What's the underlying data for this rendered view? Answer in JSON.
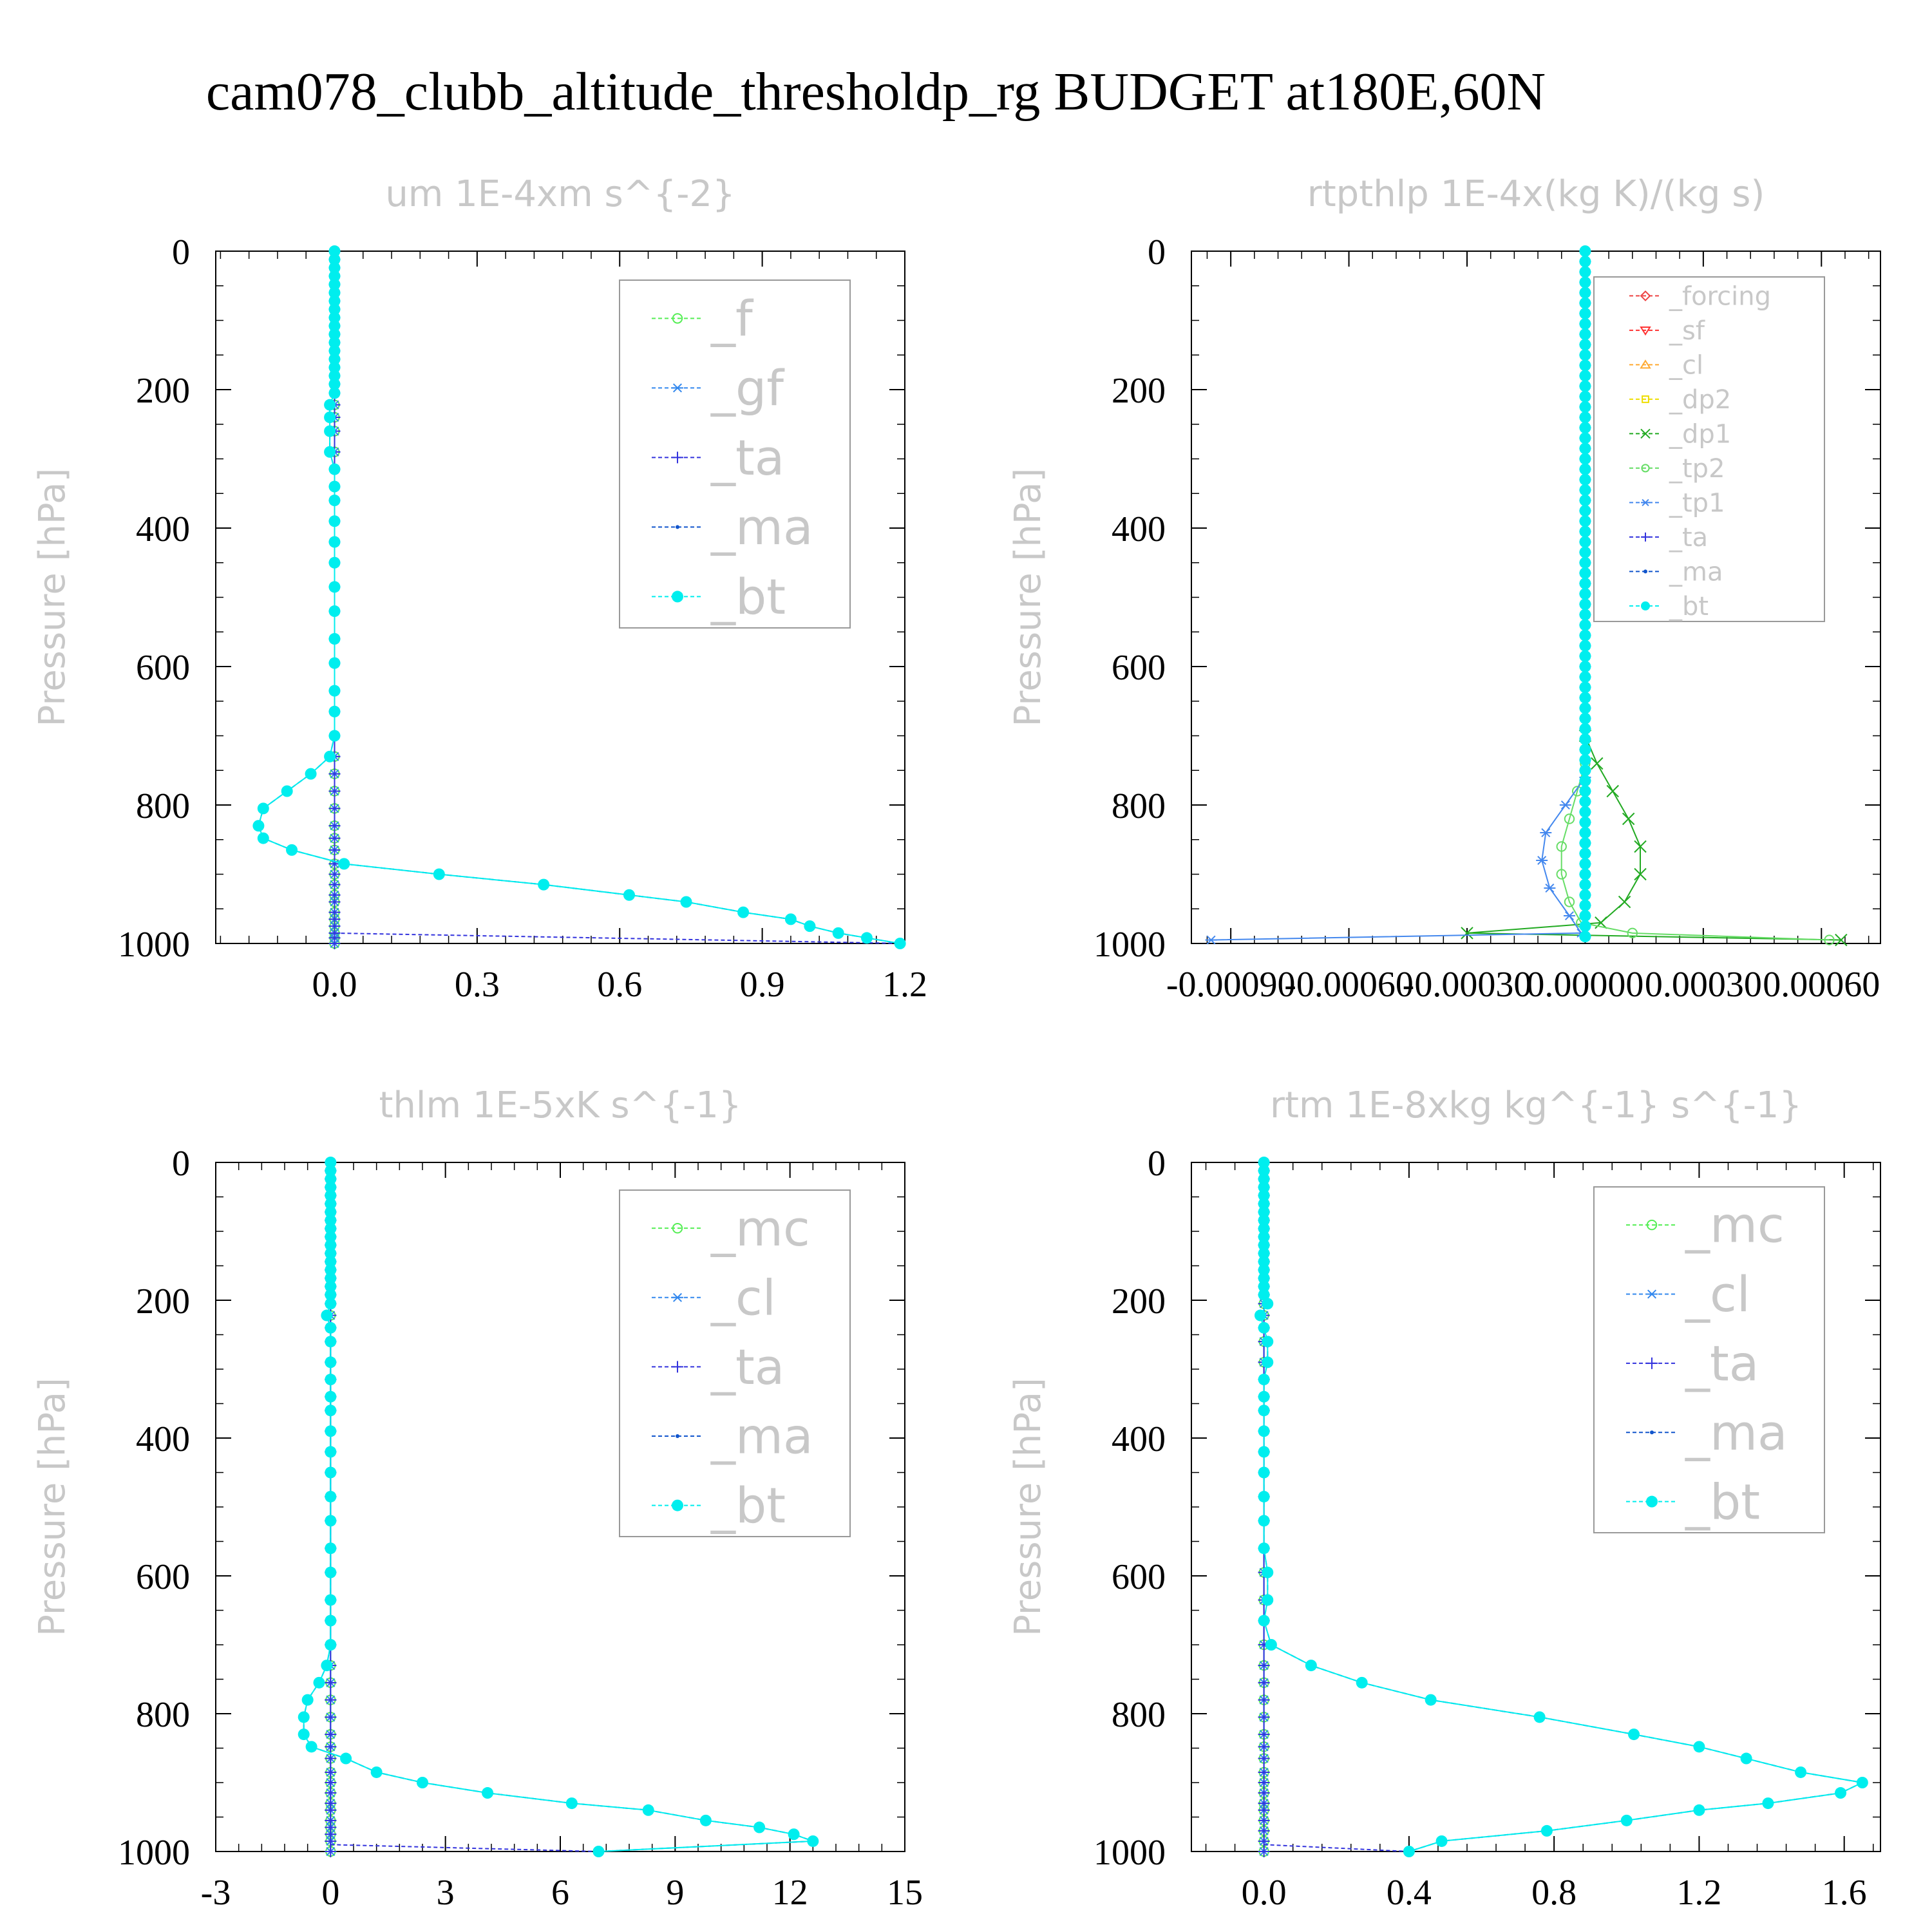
{
  "title": "cam078_clubb_altitude_thresholdp_rg  BUDGET at180E,60N",
  "colors": {
    "f": "#55ee55",
    "gf": "#3388ee",
    "ta": "#3333dd",
    "ma": "#1155cc",
    "bt": "#00eeee",
    "forcing": "#ee4444",
    "sf": "#ff3333",
    "cl_orange": "#ffaa33",
    "dp2": "#eedd00",
    "dp1": "#22aa22",
    "tp2": "#66dd66",
    "tp1": "#4488ee",
    "mc": "#55ee55",
    "cl": "#3388ee"
  },
  "chart_data": [
    {
      "type": "line",
      "title": "um  1E-4xm s^{-2}",
      "ylabel": "Pressure [hPa]",
      "ylim": [
        1000,
        0
      ],
      "xlim": [
        -0.25,
        1.2
      ],
      "xticks": [
        "0.0",
        "0.3",
        "0.6",
        "0.9",
        "1.2"
      ],
      "yticks": [
        "0",
        "200",
        "400",
        "600",
        "800",
        "1000"
      ],
      "legend": {
        "position": "top-right"
      },
      "pressure": [
        0,
        12,
        24,
        36,
        48,
        60,
        72,
        84,
        96,
        108,
        120,
        132,
        144,
        156,
        168,
        180,
        192,
        205,
        222,
        240,
        260,
        290,
        315,
        340,
        360,
        390,
        420,
        450,
        485,
        520,
        560,
        595,
        635,
        665,
        700,
        730,
        755,
        780,
        805,
        830,
        848,
        865,
        885,
        900,
        915,
        930,
        940,
        955,
        965,
        975,
        985,
        992,
        1000
      ],
      "series": [
        {
          "name": "_f",
          "symbol": "circle",
          "constant": 0.0
        },
        {
          "name": "_gf",
          "symbol": "asterisk",
          "constant": 0.0
        },
        {
          "name": "_ta",
          "symbol": "plus",
          "constant": 0.0,
          "bottom": [
            [
              985,
              0.0
            ],
            [
              1000,
              1.2
            ]
          ]
        },
        {
          "name": "_ma",
          "symbol": "dot",
          "same_as": "_bt"
        },
        {
          "name": "_bt",
          "symbol": "filled-circle",
          "values": [
            0,
            0,
            0,
            0,
            0,
            0,
            0,
            0,
            0,
            0,
            0,
            0,
            0,
            0,
            0,
            0,
            0,
            0,
            -0.01,
            -0.01,
            -0.01,
            -0.01,
            0,
            0,
            0,
            0,
            0,
            0,
            0,
            0,
            0,
            0,
            0,
            0,
            0,
            -0.01,
            -0.05,
            -0.1,
            -0.15,
            -0.16,
            -0.15,
            -0.09,
            0.02,
            0.22,
            0.44,
            0.62,
            0.74,
            0.86,
            0.96,
            1.0,
            1.06,
            1.12,
            1.19
          ]
        }
      ]
    },
    {
      "type": "line",
      "title": "rtpthlp  1E-4x(kg K)/(kg s)",
      "ylabel": "Pressure [hPa]",
      "ylim": [
        1000,
        0
      ],
      "xlim": [
        -0.001,
        0.00075
      ],
      "xticks": [
        "-0.00090",
        "-0.00060",
        "-0.00030",
        "0.00000",
        "0.00030",
        "0.00060"
      ],
      "yticks": [
        "0",
        "200",
        "400",
        "600",
        "800",
        "1000"
      ],
      "legend": {
        "position": "top-right"
      },
      "series": [
        {
          "name": "_forcing",
          "symbol": "diamond"
        },
        {
          "name": "_sf",
          "symbol": "triangle-down"
        },
        {
          "name": "_cl",
          "symbol": "triangle-up"
        },
        {
          "name": "_dp2",
          "symbol": "square"
        },
        {
          "name": "_dp1",
          "symbol": "x",
          "pressure": [
            700,
            740,
            780,
            820,
            860,
            900,
            940,
            970,
            985,
            995
          ],
          "values": [
            0,
            3e-05,
            7e-05,
            0.00011,
            0.00014,
            0.00014,
            0.0001,
            4e-05,
            -0.0003,
            0.00065
          ]
        },
        {
          "name": "_tp2",
          "symbol": "circle",
          "pressure": [
            740,
            780,
            820,
            860,
            900,
            940,
            970,
            985,
            995
          ],
          "values": [
            0,
            -2e-05,
            -4e-05,
            -6e-05,
            -6e-05,
            -4e-05,
            -1e-05,
            0.00012,
            0.00062
          ]
        },
        {
          "name": "_tp1",
          "symbol": "asterisk",
          "pressure": [
            760,
            800,
            840,
            880,
            920,
            960,
            985,
            995
          ],
          "values": [
            0,
            -5e-05,
            -0.0001,
            -0.00011,
            -9e-05,
            -4e-05,
            -1e-05,
            -0.00095
          ]
        },
        {
          "name": "_ta",
          "symbol": "plus",
          "constant": 0.0
        },
        {
          "name": "_ma",
          "symbol": "dot",
          "constant": 0.0
        },
        {
          "name": "_bt",
          "symbol": "filled-circle",
          "constant": 0.0
        }
      ]
    },
    {
      "type": "line",
      "title": "thlm  1E-5xK s^{-1}",
      "ylabel": "Pressure [hPa]",
      "ylim": [
        1000,
        0
      ],
      "xlim": [
        -3,
        15
      ],
      "xticks": [
        "-3",
        "0",
        "3",
        "6",
        "9",
        "12",
        "15"
      ],
      "yticks": [
        "0",
        "200",
        "400",
        "600",
        "800",
        "1000"
      ],
      "legend": {
        "position": "top-right"
      },
      "pressure": [
        0,
        12,
        24,
        36,
        48,
        60,
        72,
        84,
        96,
        108,
        120,
        132,
        144,
        156,
        168,
        180,
        192,
        205,
        222,
        240,
        260,
        290,
        315,
        340,
        360,
        390,
        420,
        450,
        485,
        520,
        560,
        595,
        635,
        665,
        700,
        730,
        755,
        780,
        805,
        830,
        848,
        865,
        885,
        900,
        915,
        930,
        940,
        955,
        965,
        975,
        985,
        1000
      ],
      "series": [
        {
          "name": "_mc",
          "symbol": "circle",
          "constant": 0.0
        },
        {
          "name": "_cl",
          "symbol": "asterisk",
          "constant": 0.0
        },
        {
          "name": "_ta",
          "symbol": "plus",
          "constant": 0.0,
          "bottom": [
            [
              990,
              0.0
            ],
            [
              1000,
              7.0
            ]
          ]
        },
        {
          "name": "_ma",
          "symbol": "dot",
          "same_as": "_bt"
        },
        {
          "name": "_bt",
          "symbol": "filled-circle",
          "values": [
            0,
            0,
            0,
            0,
            0,
            0,
            0,
            0,
            0,
            0,
            0,
            0,
            0,
            0,
            0,
            0,
            0,
            0,
            -0.1,
            0,
            0,
            0,
            0,
            0,
            0,
            0,
            0,
            0,
            0,
            0,
            0,
            0,
            0,
            0,
            0,
            -0.1,
            -0.3,
            -0.6,
            -0.7,
            -0.7,
            -0.5,
            0.4,
            1.2,
            2.4,
            4.1,
            6.3,
            8.3,
            9.8,
            11.2,
            12.1,
            12.6,
            7.0
          ]
        }
      ]
    },
    {
      "type": "line",
      "title": "rtm  1E-8xkg kg^{-1} s^{-1}",
      "ylabel": "Pressure [hPa]",
      "ylim": [
        1000,
        0
      ],
      "xlim": [
        -0.2,
        1.7
      ],
      "xticks": [
        "0.0",
        "0.4",
        "0.8",
        "1.2",
        "1.6"
      ],
      "yticks": [
        "0",
        "200",
        "400",
        "600",
        "800",
        "1000"
      ],
      "legend": {
        "position": "top-right"
      },
      "pressure": [
        0,
        12,
        24,
        36,
        48,
        60,
        72,
        84,
        96,
        108,
        120,
        132,
        144,
        156,
        168,
        180,
        192,
        205,
        222,
        240,
        260,
        290,
        315,
        340,
        360,
        390,
        420,
        450,
        485,
        520,
        560,
        595,
        635,
        665,
        700,
        730,
        755,
        780,
        805,
        830,
        848,
        865,
        885,
        900,
        915,
        930,
        940,
        955,
        970,
        985,
        1000
      ],
      "series": [
        {
          "name": "_mc",
          "symbol": "circle",
          "constant": 0.0
        },
        {
          "name": "_cl",
          "symbol": "asterisk",
          "constant": 0.0
        },
        {
          "name": "_ta",
          "symbol": "plus",
          "constant": 0.0,
          "bottom": [
            [
              990,
              0.0
            ],
            [
              1000,
              0.4
            ]
          ]
        },
        {
          "name": "_ma",
          "symbol": "dot",
          "same_as": "_bt"
        },
        {
          "name": "_bt",
          "symbol": "filled-circle",
          "values": [
            0,
            0,
            0,
            0,
            0,
            0,
            0,
            0,
            0,
            0,
            0,
            0,
            0,
            0,
            0,
            0,
            0,
            0.01,
            -0.01,
            0,
            0.01,
            0.01,
            0,
            0,
            0,
            0,
            0,
            0,
            0,
            0,
            0,
            0.01,
            0.01,
            0,
            0.02,
            0.13,
            0.27,
            0.46,
            0.76,
            1.02,
            1.2,
            1.33,
            1.48,
            1.65,
            1.59,
            1.39,
            1.2,
            1.0,
            0.78,
            0.49,
            0.4
          ]
        }
      ]
    }
  ]
}
